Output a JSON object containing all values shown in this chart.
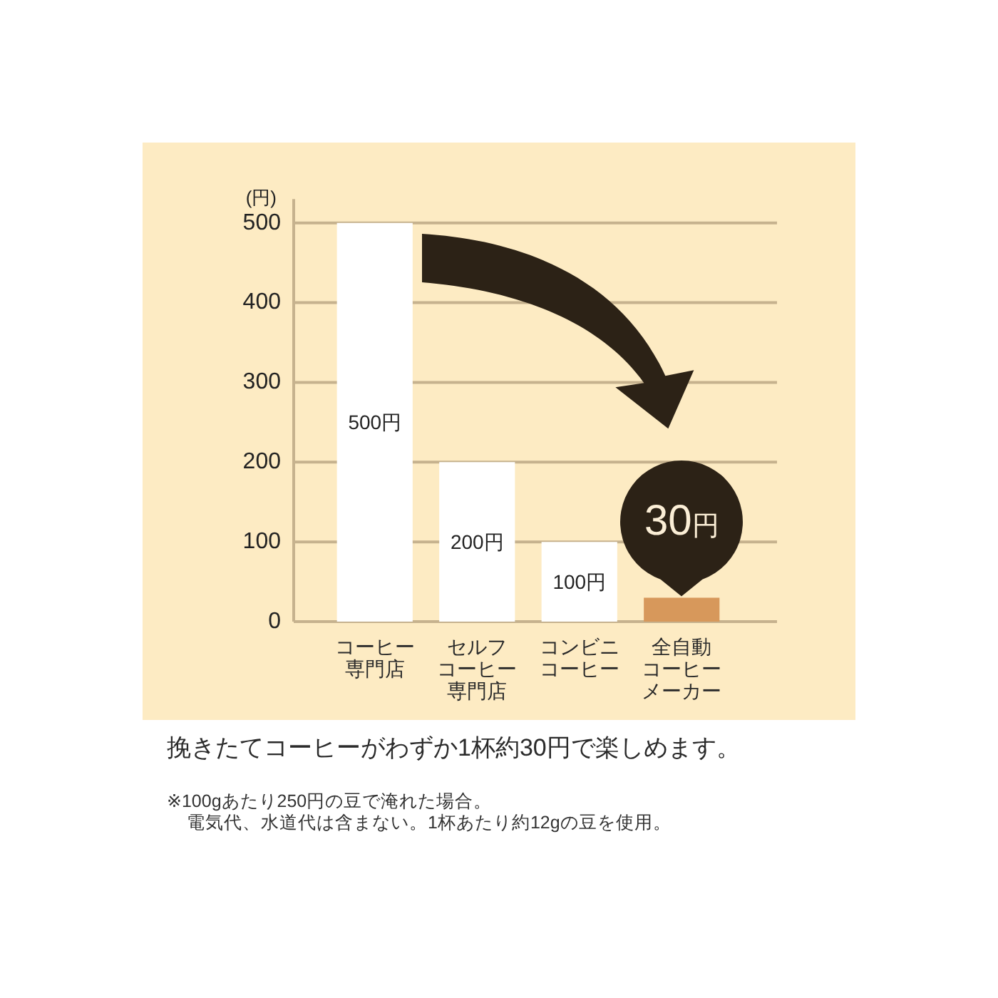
{
  "chart_data": {
    "type": "bar",
    "categories": [
      "コーヒー専門店",
      "セルフコーヒー専門店",
      "コンビニコーヒー",
      "全自動コーヒーメーカー"
    ],
    "values": [
      500,
      200,
      100,
      30
    ],
    "colors": [
      "#ffffff",
      "#ffffff",
      "#ffffff",
      "#d7985b"
    ],
    "value_labels": [
      "500円",
      "200円",
      "100円",
      "30円"
    ],
    "ylabel": "(円)",
    "ylim": [
      0,
      530
    ],
    "yticks": [
      0,
      100,
      200,
      300,
      400,
      500
    ],
    "grid": "y",
    "annotations": [
      "挽きたてコーヒーがわずか1杯約30円で楽しめます。",
      "※100gあたり250円の豆で淹れた場合。",
      "電気代、水道代は含まない。1杯あたり約12gの豆を使用。"
    ]
  }
}
